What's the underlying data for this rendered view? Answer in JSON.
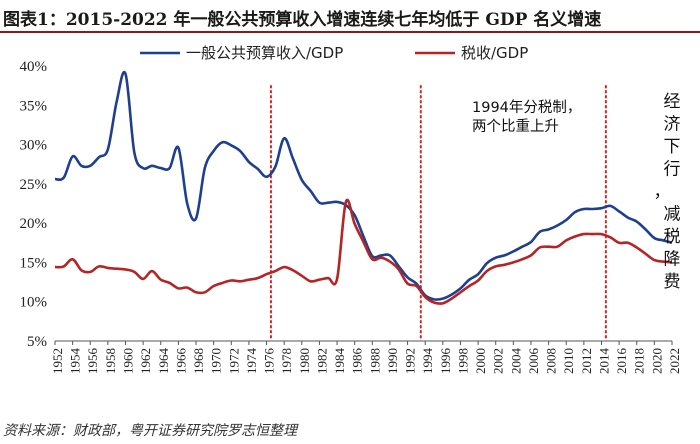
{
  "header": {
    "title": "图表1：2015-2022 年一般公共预算收入增速连续七年均低于 GDP 名义增速"
  },
  "footer": {
    "source": "资料来源：财政部，粤开证券研究院罗志恒整理"
  },
  "chart_data": {
    "type": "line",
    "title": "图表1：2015-2022 年一般公共预算收入增速连续七年均低于 GDP 名义增速",
    "xlabel": "",
    "ylabel": "",
    "ylim": [
      5,
      40
    ],
    "yticks": [
      5,
      10,
      15,
      20,
      25,
      30,
      35,
      40
    ],
    "ytick_labels": [
      "5%",
      "10%",
      "15%",
      "20%",
      "25%",
      "30%",
      "35%",
      "40%"
    ],
    "xlim": [
      1952,
      2022
    ],
    "xticks": [
      1952,
      1954,
      1956,
      1958,
      1960,
      1962,
      1964,
      1966,
      1968,
      1970,
      1972,
      1974,
      1976,
      1978,
      1980,
      1982,
      1984,
      1986,
      1988,
      1990,
      1992,
      1994,
      1996,
      1998,
      2000,
      2002,
      2004,
      2006,
      2008,
      2010,
      2012,
      2014,
      2016,
      2018,
      2020,
      2022
    ],
    "grid": false,
    "legend_position": "top",
    "series": [
      {
        "name": "一般公共预算收入/GDP",
        "color": "#1f3f8f",
        "x": [
          1952,
          1953,
          1954,
          1955,
          1956,
          1957,
          1958,
          1959,
          1960,
          1961,
          1962,
          1963,
          1964,
          1965,
          1966,
          1967,
          1968,
          1969,
          1970,
          1971,
          1972,
          1973,
          1974,
          1975,
          1976,
          1977,
          1978,
          1979,
          1980,
          1981,
          1982,
          1983,
          1984,
          1985,
          1986,
          1987,
          1988,
          1989,
          1990,
          1991,
          1992,
          1993,
          1994,
          1995,
          1996,
          1997,
          1998,
          1999,
          2000,
          2001,
          2002,
          2003,
          2004,
          2005,
          2006,
          2007,
          2008,
          2009,
          2010,
          2011,
          2012,
          2013,
          2014,
          2015,
          2016,
          2017,
          2018,
          2019,
          2020,
          2021,
          2022
        ],
        "values": [
          25.6,
          25.8,
          28.5,
          27.3,
          27.3,
          28.4,
          29.4,
          35.5,
          39.0,
          29.0,
          27.0,
          27.3,
          27.0,
          27.0,
          29.6,
          22.5,
          20.6,
          27.0,
          29.2,
          30.3,
          29.9,
          29.2,
          27.8,
          26.9,
          25.9,
          27.2,
          30.8,
          28.2,
          25.5,
          24.1,
          22.6,
          22.6,
          22.7,
          22.3,
          21.0,
          18.3,
          15.8,
          15.9,
          15.9,
          14.5,
          13.1,
          12.3,
          10.8,
          10.3,
          10.4,
          10.9,
          11.7,
          12.8,
          13.5,
          14.9,
          15.6,
          15.9,
          16.4,
          17.0,
          17.6,
          18.9,
          19.2,
          19.7,
          20.4,
          21.4,
          21.8,
          21.8,
          21.9,
          22.2,
          21.5,
          20.7,
          20.2,
          19.2,
          18.1,
          17.8,
          17.5
        ]
      },
      {
        "name": "税收/GDP",
        "color": "#b52525",
        "x": [
          1952,
          1953,
          1954,
          1955,
          1956,
          1957,
          1958,
          1959,
          1960,
          1961,
          1962,
          1963,
          1964,
          1965,
          1966,
          1967,
          1968,
          1969,
          1970,
          1971,
          1972,
          1973,
          1974,
          1975,
          1976,
          1977,
          1978,
          1979,
          1980,
          1981,
          1982,
          1983,
          1984,
          1985,
          1986,
          1987,
          1988,
          1989,
          1990,
          1991,
          1992,
          1993,
          1994,
          1995,
          1996,
          1997,
          1998,
          1999,
          2000,
          2001,
          2002,
          2003,
          2004,
          2005,
          2006,
          2007,
          2008,
          2009,
          2010,
          2011,
          2012,
          2013,
          2014,
          2015,
          2016,
          2017,
          2018,
          2019,
          2020,
          2021,
          2022
        ],
        "values": [
          14.4,
          14.5,
          15.4,
          14.0,
          13.8,
          14.5,
          14.3,
          14.2,
          14.1,
          13.8,
          12.9,
          13.9,
          12.8,
          12.4,
          11.7,
          11.8,
          11.2,
          11.2,
          12.0,
          12.4,
          12.7,
          12.6,
          12.8,
          13.0,
          13.5,
          13.9,
          14.4,
          14.0,
          13.3,
          12.6,
          12.8,
          13.0,
          12.9,
          22.7,
          19.9,
          17.6,
          15.4,
          15.6,
          15.1,
          14.1,
          12.3,
          12.0,
          10.6,
          9.9,
          9.8,
          10.4,
          11.2,
          12.0,
          12.7,
          13.9,
          14.5,
          14.7,
          15.0,
          15.4,
          15.9,
          16.9,
          17.0,
          17.0,
          17.8,
          18.3,
          18.6,
          18.6,
          18.6,
          18.2,
          17.5,
          17.5,
          16.9,
          16.1,
          15.3,
          15.1,
          15.0
        ]
      }
    ],
    "vlines": [
      1976.5,
      1993.5,
      2014.5
    ],
    "annotations": [
      {
        "text_lines": [
          "1994年分税制，",
          "两个比重上升"
        ]
      },
      {
        "text_vertical": "经济下行，减税降费"
      }
    ]
  }
}
